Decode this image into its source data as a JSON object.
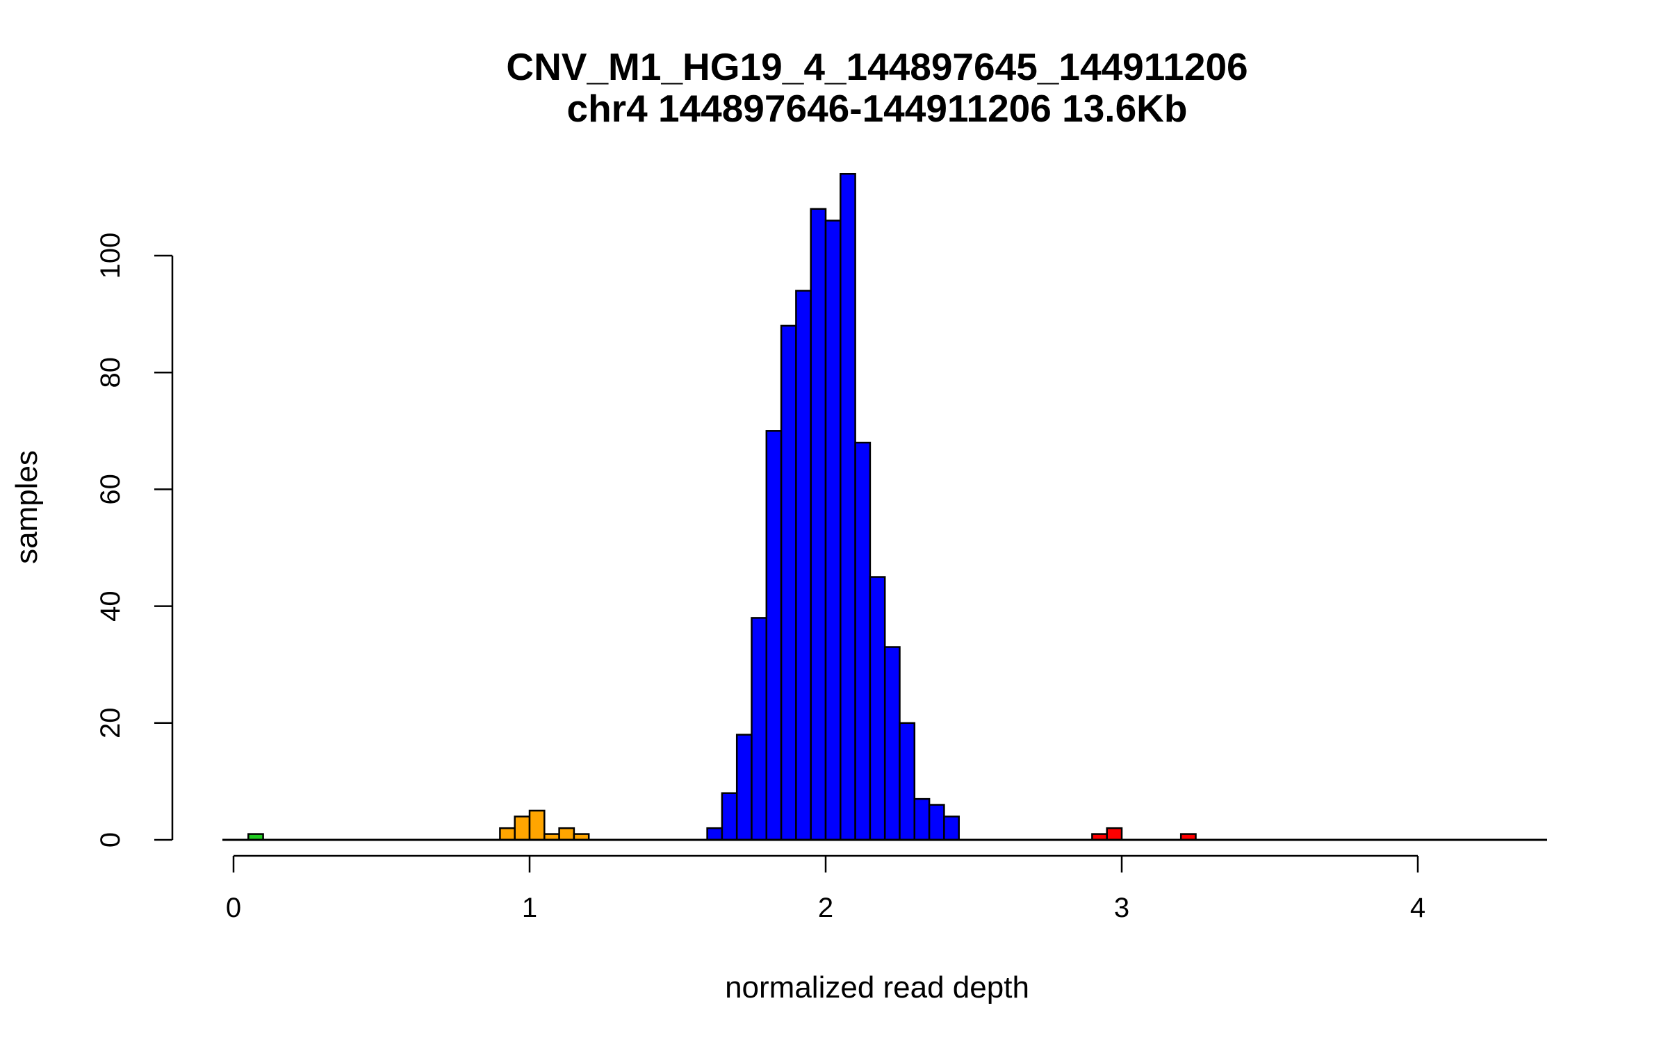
{
  "chart_data": {
    "type": "bar",
    "title": "CNV_M1_HG19_4_144897645_144911206",
    "subtitle": "chr4 144897646-144911206 13.6Kb",
    "xlabel": "normalized read depth",
    "ylabel": "samples",
    "xlim": [
      0,
      4.45
    ],
    "ylim": [
      0,
      114
    ],
    "x_ticks": [
      0,
      1,
      2,
      3,
      4
    ],
    "y_ticks": [
      0,
      20,
      40,
      60,
      80,
      100
    ],
    "grid": false,
    "bin_width": 0.05,
    "bins": [
      {
        "start": 0.05,
        "end": 0.1,
        "count": 1,
        "color": "#22cc22"
      },
      {
        "start": 0.9,
        "end": 0.95,
        "count": 2,
        "color": "#ffa500"
      },
      {
        "start": 0.95,
        "end": 1.0,
        "count": 4,
        "color": "#ffa500"
      },
      {
        "start": 1.0,
        "end": 1.05,
        "count": 5,
        "color": "#ffa500"
      },
      {
        "start": 1.05,
        "end": 1.1,
        "count": 1,
        "color": "#ffa500"
      },
      {
        "start": 1.1,
        "end": 1.15,
        "count": 2,
        "color": "#ffa500"
      },
      {
        "start": 1.15,
        "end": 1.2,
        "count": 1,
        "color": "#ffa500"
      },
      {
        "start": 1.6,
        "end": 1.65,
        "count": 2,
        "color": "#0000ff"
      },
      {
        "start": 1.65,
        "end": 1.7,
        "count": 8,
        "color": "#0000ff"
      },
      {
        "start": 1.7,
        "end": 1.75,
        "count": 18,
        "color": "#0000ff"
      },
      {
        "start": 1.75,
        "end": 1.8,
        "count": 38,
        "color": "#0000ff"
      },
      {
        "start": 1.8,
        "end": 1.85,
        "count": 70,
        "color": "#0000ff"
      },
      {
        "start": 1.85,
        "end": 1.9,
        "count": 88,
        "color": "#0000ff"
      },
      {
        "start": 1.9,
        "end": 1.95,
        "count": 94,
        "color": "#0000ff"
      },
      {
        "start": 1.95,
        "end": 2.0,
        "count": 108,
        "color": "#0000ff"
      },
      {
        "start": 2.0,
        "end": 2.05,
        "count": 106,
        "color": "#0000ff"
      },
      {
        "start": 2.05,
        "end": 2.1,
        "count": 114,
        "color": "#0000ff"
      },
      {
        "start": 2.1,
        "end": 2.15,
        "count": 68,
        "color": "#0000ff"
      },
      {
        "start": 2.15,
        "end": 2.2,
        "count": 45,
        "color": "#0000ff"
      },
      {
        "start": 2.2,
        "end": 2.25,
        "count": 33,
        "color": "#0000ff"
      },
      {
        "start": 2.25,
        "end": 2.3,
        "count": 20,
        "color": "#0000ff"
      },
      {
        "start": 2.3,
        "end": 2.35,
        "count": 7,
        "color": "#0000ff"
      },
      {
        "start": 2.35,
        "end": 2.4,
        "count": 6,
        "color": "#0000ff"
      },
      {
        "start": 2.4,
        "end": 2.45,
        "count": 4,
        "color": "#0000ff"
      },
      {
        "start": 2.9,
        "end": 2.95,
        "count": 1,
        "color": "#ff0000"
      },
      {
        "start": 2.95,
        "end": 3.0,
        "count": 2,
        "color": "#ff0000"
      },
      {
        "start": 3.2,
        "end": 3.25,
        "count": 1,
        "color": "#ff0000"
      }
    ]
  }
}
